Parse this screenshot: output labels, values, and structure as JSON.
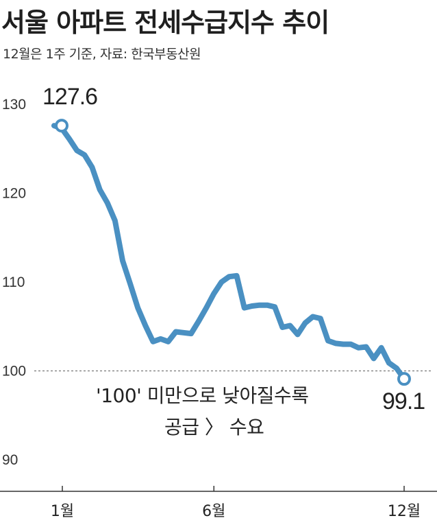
{
  "chart_data": {
    "type": "line",
    "title": "서울 아파트 전세수급지수 추이",
    "subtitle": "12월은 1주 기준, 자료: 한국부동산원",
    "xlabel": "",
    "ylabel": "",
    "ylim": [
      90,
      130
    ],
    "y_ticks": [
      "130",
      "120",
      "110",
      "100",
      "90"
    ],
    "x_ticks": [
      {
        "label": "1월",
        "at": 0
      },
      {
        "label": "6월",
        "at": 21
      },
      {
        "label": "12월",
        "at": 46
      }
    ],
    "reference_line": {
      "value": 100,
      "style": "dashed"
    },
    "series": [
      {
        "name": "",
        "color": "#4a90c2",
        "values": [
          127.6,
          127.3,
          126.1,
          124.8,
          124.3,
          122.9,
          120.4,
          118.9,
          116.9,
          112.4,
          109.8,
          107.1,
          105.1,
          103.3,
          103.6,
          103.3,
          104.4,
          104.3,
          104.2,
          105.6,
          107.1,
          108.7,
          110.0,
          110.6,
          110.7,
          107.1,
          107.3,
          107.4,
          107.4,
          107.2,
          104.9,
          105.1,
          104.1,
          105.4,
          106.1,
          105.9,
          103.4,
          103.1,
          103.0,
          103.0,
          102.6,
          102.7,
          101.4,
          102.6,
          100.9,
          100.3,
          99.1
        ],
        "start_label": "127.6",
        "end_label": "99.1"
      }
    ],
    "annotations": [
      {
        "line1": "'100' 미만으로 낮아질수록",
        "line2": "공급 〉 수요"
      }
    ],
    "grid": false
  }
}
